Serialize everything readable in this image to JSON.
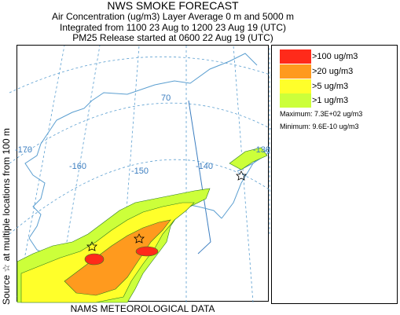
{
  "header": {
    "title": "NWS SMOKE FORECAST",
    "line2": "Air Concentration (ug/m3) Layer Average    0 m and  5000 m",
    "line3": "Integrated from 1100 23 Aug to 1200 23 Aug 19 (UTC)",
    "line4": "PM25 Release started at 0600 22 Aug 19 (UTC)"
  },
  "side_label": "Source ☆  at multiple locations   from   100 m",
  "footer": "NAMS METEOROLOGICAL DATA",
  "graticule": {
    "lat_label": "70",
    "lon_labels": [
      "-170",
      "-160",
      "-150",
      "-140",
      "-130"
    ]
  },
  "legend": {
    "items": [
      {
        "label": ">100 ug/m3",
        "color": "#ff2a1a"
      },
      {
        "label": ">20 ug/m3",
        "color": "#ff9a1e"
      },
      {
        "label": ">5 ug/m3",
        "color": "#ffff2a"
      },
      {
        "label": ">1 ug/m3",
        "color": "#ccff3a"
      }
    ],
    "maximum": "Maximum: 7.3E+02 ug/m3",
    "minimum": "Minimum: 9.6E-10 ug/m3"
  },
  "colors": {
    "coast": "#5a9ed0",
    "graticule": "#5a9ed0",
    "border": "#3c7ec0"
  }
}
